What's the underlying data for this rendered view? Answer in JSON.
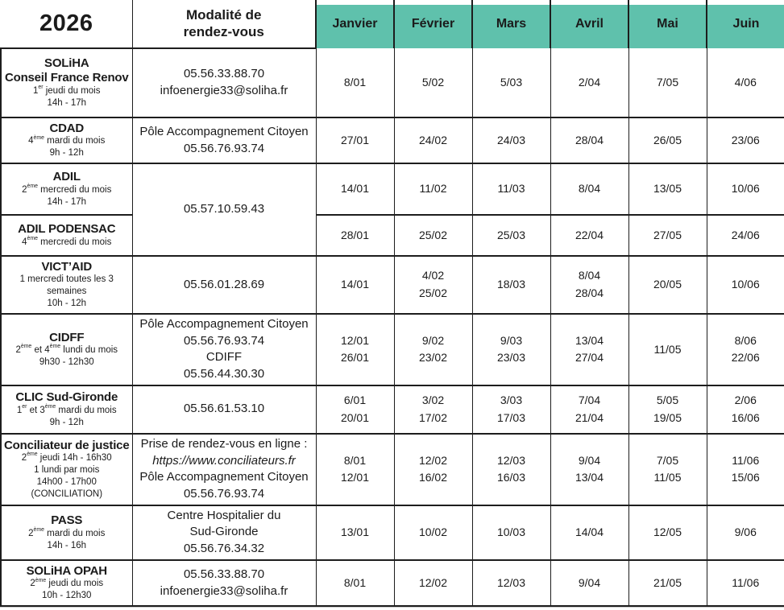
{
  "title": {
    "year": "2026"
  },
  "header": {
    "modalite_lines": [
      "Modalité de",
      "rendez-vous"
    ],
    "months": [
      "Janvier",
      "Février",
      "Mars",
      "Avril",
      "Mai",
      "Juin"
    ]
  },
  "colors": {
    "month_header_bg": "#5fc1ac",
    "border": "#1d1d1d",
    "text": "#1b1b1b"
  },
  "rows": [
    {
      "id": "soliha-conseil-france-renov",
      "name_lines": [
        "SOLiHA",
        "Conseil France Renov"
      ],
      "schedule_lines": [
        "1er jeudi du mois",
        "14h - 17h"
      ],
      "modalite": {
        "lines": [
          "05.56.33.88.70",
          "infoenergie33@soliha.fr"
        ]
      },
      "dates": [
        [
          "8/01"
        ],
        [
          "5/02"
        ],
        [
          "5/03"
        ],
        [
          "2/04"
        ],
        [
          "7/05"
        ],
        [
          "4/06"
        ]
      ]
    },
    {
      "id": "cdad",
      "name_lines": [
        "CDAD"
      ],
      "schedule_lines": [
        "4ème mardi du mois",
        "9h - 12h"
      ],
      "modalite": {
        "lines": [
          "Pôle Accompagnement Citoyen",
          "05.56.76.93.74"
        ]
      },
      "dates": [
        [
          "27/01"
        ],
        [
          "24/02"
        ],
        [
          "24/03"
        ],
        [
          "28/04"
        ],
        [
          "26/05"
        ],
        [
          "23/06"
        ]
      ]
    },
    {
      "id": "adil",
      "name_lines": [
        "ADIL"
      ],
      "schedule_lines": [
        "2ème mercredi du mois",
        "14h - 17h"
      ],
      "modalite": {
        "lines": [
          "05.57.10.59.43"
        ],
        "rowspan": 2
      },
      "dates": [
        [
          "14/01"
        ],
        [
          "11/02"
        ],
        [
          "11/03"
        ],
        [
          "8/04"
        ],
        [
          "13/05"
        ],
        [
          "10/06"
        ]
      ]
    },
    {
      "id": "adil-podensac",
      "name_lines": [
        "ADIL PODENSAC"
      ],
      "schedule_lines": [
        "4ème mercredi du mois"
      ],
      "modalite": {
        "merged": true
      },
      "dates": [
        [
          "28/01"
        ],
        [
          "25/02"
        ],
        [
          "25/03"
        ],
        [
          "22/04"
        ],
        [
          "27/05"
        ],
        [
          "24/06"
        ]
      ]
    },
    {
      "id": "victaid",
      "name_lines": [
        "VICT’AID"
      ],
      "schedule_lines": [
        "1 mercredi toutes les 3",
        "semaines",
        "10h - 12h"
      ],
      "modalite": {
        "lines": [
          "05.56.01.28.69"
        ]
      },
      "dates": [
        [
          "14/01"
        ],
        [
          "4/02",
          "25/02"
        ],
        [
          "18/03"
        ],
        [
          "8/04",
          "28/04"
        ],
        [
          "20/05"
        ],
        [
          "10/06"
        ]
      ]
    },
    {
      "id": "cidff",
      "name_lines": [
        "CIDFF"
      ],
      "schedule_lines": [
        "2ème et 4ème lundi du mois",
        "9h30 - 12h30"
      ],
      "modalite": {
        "lines": [
          "Pôle Accompagnement Citoyen",
          "05.56.76.93.74",
          "CDIFF",
          "05.56.44.30.30"
        ]
      },
      "dates": [
        [
          "12/01",
          "26/01"
        ],
        [
          "9/02",
          "23/02"
        ],
        [
          "9/03",
          "23/03"
        ],
        [
          "13/04",
          "27/04"
        ],
        [
          "11/05"
        ],
        [
          "8/06",
          "22/06"
        ]
      ]
    },
    {
      "id": "clic-sud-gironde",
      "name_lines": [
        "CLIC Sud-Gironde"
      ],
      "schedule_lines": [
        "1er et 3ème mardi du mois",
        "9h - 12h"
      ],
      "modalite": {
        "lines": [
          "05.56.61.53.10"
        ]
      },
      "dates": [
        [
          "6/01",
          "20/01"
        ],
        [
          "3/02",
          "17/02"
        ],
        [
          "3/03",
          "17/03"
        ],
        [
          "7/04",
          "21/04"
        ],
        [
          "5/05",
          "19/05"
        ],
        [
          "2/06",
          "16/06"
        ]
      ]
    },
    {
      "id": "conciliateur-de-justice",
      "name_lines": [
        "Conciliateur de justice"
      ],
      "schedule_lines": [
        "2ème jeudi 14h - 16h30",
        "1 lundi par mois",
        "14h00 - 17h00",
        "(CONCILIATION)"
      ],
      "modalite": {
        "lines": [
          "Prise de rendez-vous en ligne :",
          "https://www.conciliateurs.fr",
          "Pôle Accompagnement Citoyen",
          "05.56.76.93.74"
        ],
        "italic_indexes": [
          1
        ]
      },
      "dates": [
        [
          "8/01",
          "12/01"
        ],
        [
          "12/02",
          "16/02"
        ],
        [
          "12/03",
          "16/03"
        ],
        [
          "9/04",
          "13/04"
        ],
        [
          "7/05",
          "11/05"
        ],
        [
          "11/06",
          "15/06"
        ]
      ]
    },
    {
      "id": "pass",
      "name_lines": [
        "PASS"
      ],
      "schedule_lines": [
        "2ème mardi du mois",
        "14h - 16h"
      ],
      "modalite": {
        "lines": [
          "Centre Hospitalier du",
          "Sud-Gironde",
          "05.56.76.34.32"
        ]
      },
      "dates": [
        [
          "13/01"
        ],
        [
          "10/02"
        ],
        [
          "10/03"
        ],
        [
          "14/04"
        ],
        [
          "12/05"
        ],
        [
          "9/06"
        ]
      ]
    },
    {
      "id": "soliha-opah",
      "name_lines": [
        "SOLiHA OPAH"
      ],
      "schedule_lines": [
        "2ème jeudi du mois",
        "10h - 12h30"
      ],
      "modalite": {
        "lines": [
          "05.56.33.88.70",
          "infoenergie33@soliha.fr"
        ]
      },
      "dates": [
        [
          "8/01"
        ],
        [
          "12/02"
        ],
        [
          "12/03"
        ],
        [
          "9/04"
        ],
        [
          "21/05"
        ],
        [
          "11/06"
        ]
      ]
    }
  ]
}
